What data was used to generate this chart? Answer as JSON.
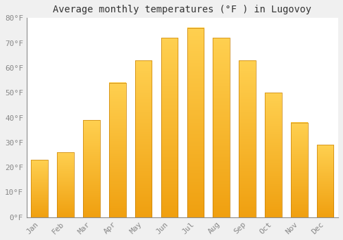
{
  "title": "Average monthly temperatures (°F ) in Lugovoy",
  "months": [
    "Jan",
    "Feb",
    "Mar",
    "Apr",
    "May",
    "Jun",
    "Jul",
    "Aug",
    "Sep",
    "Oct",
    "Nov",
    "Dec"
  ],
  "values": [
    23,
    26,
    39,
    54,
    63,
    72,
    76,
    72,
    63,
    50,
    38,
    29
  ],
  "bar_color_bottom": "#F0A010",
  "bar_color_top": "#FFD050",
  "bar_edge_color": "#C8820A",
  "background_color": "#f0f0f0",
  "ylim": [
    0,
    80
  ],
  "yticks": [
    0,
    10,
    20,
    30,
    40,
    50,
    60,
    70,
    80
  ],
  "ytick_labels": [
    "0°F",
    "10°F",
    "20°F",
    "30°F",
    "40°F",
    "50°F",
    "60°F",
    "70°F",
    "80°F"
  ],
  "title_fontsize": 10,
  "tick_fontsize": 8,
  "grid_color": "#ffffff",
  "plot_bg_color": "#ffffff",
  "spine_color": "#888888",
  "tick_color": "#888888"
}
